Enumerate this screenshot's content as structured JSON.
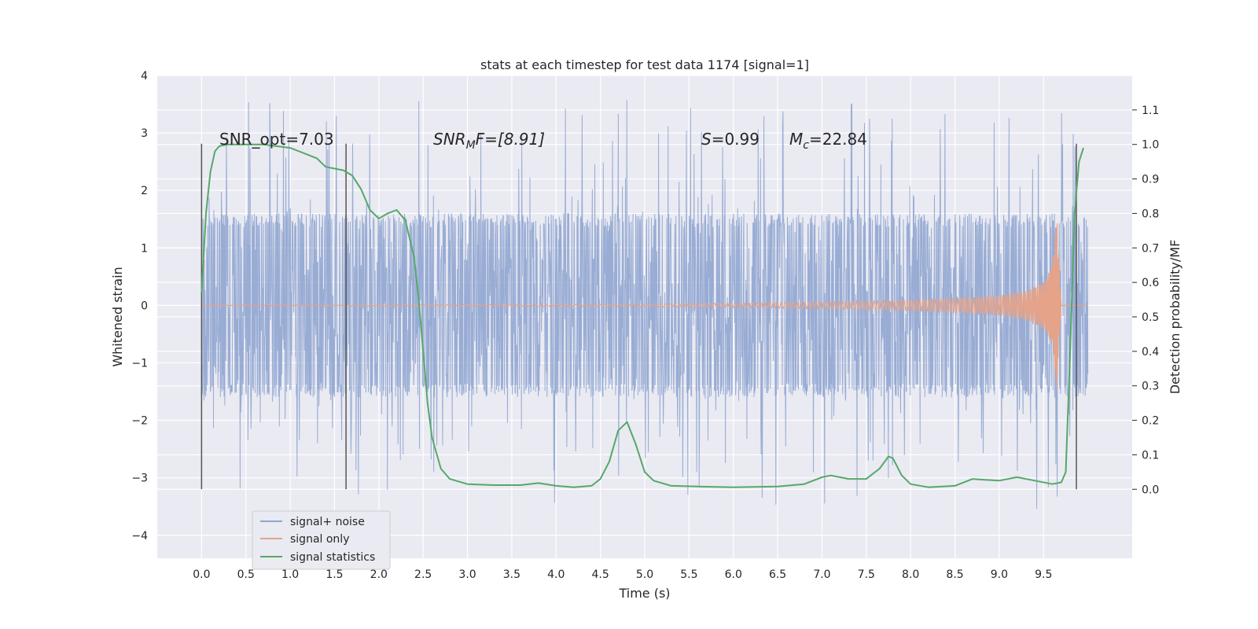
{
  "chart_data": {
    "type": "line",
    "title": "stats at each timestep for test data 1174 [signal=1]",
    "xlabel": "Time (s)",
    "ylabel": "Whitened strain",
    "y2label": "Detection probability/MF",
    "xlim": [
      -0.5,
      10.5
    ],
    "ylim": [
      -4.4,
      4.0
    ],
    "y2lim": [
      -0.2,
      1.2
    ],
    "x_ticks": [
      "0.0",
      "0.5",
      "1.0",
      "1.5",
      "2.0",
      "2.5",
      "3.0",
      "3.5",
      "4.0",
      "4.5",
      "5.0",
      "5.5",
      "6.0",
      "6.5",
      "7.0",
      "7.5",
      "8.0",
      "8.5",
      "9.0",
      "9.5"
    ],
    "y_ticks": [
      "4",
      "3",
      "2",
      "1",
      "0",
      "−1",
      "−2",
      "−3",
      "−4"
    ],
    "y2_ticks": [
      "1.1",
      "1.0",
      "0.9",
      "0.8",
      "0.7",
      "0.6",
      "0.5",
      "0.4",
      "0.3",
      "0.2",
      "0.1",
      "0.0"
    ],
    "grid": true,
    "legend_position": "lower-left",
    "annotations": {
      "snr_opt": "SNR_opt=7.03",
      "snr_mf_base": "SNR",
      "snr_mf_sub": "M",
      "snr_mf_rest": "F=[8.91]",
      "s_sym": "S",
      "s_rest": "=0.99",
      "mc_base": "M",
      "mc_sub": "c",
      "mc_rest": "=22.84"
    },
    "vertical_markers_x": [
      0.0,
      1.63,
      9.87
    ],
    "series": [
      {
        "name": "signal+ noise",
        "color": "#8fa5d0",
        "style": "dense noisy whitened strain, typical envelope about ±1.6 with spikes to ±3.5",
        "x_range": [
          0.0,
          10.0
        ],
        "envelope": 1.6,
        "max_spike": 3.6
      },
      {
        "name": "signal only",
        "color": "#e5a38a",
        "x": [
          0.0,
          5.0,
          6.0,
          7.0,
          8.0,
          8.5,
          9.0,
          9.3,
          9.5,
          9.6,
          9.65,
          9.7,
          10.0
        ],
        "amplitude": [
          0.0,
          0.02,
          0.04,
          0.06,
          0.09,
          0.12,
          0.17,
          0.25,
          0.4,
          0.7,
          1.5,
          0.0,
          0.0
        ]
      },
      {
        "name": "signal statistics",
        "color": "#55a868",
        "x": [
          0.0,
          0.05,
          0.1,
          0.15,
          0.2,
          0.3,
          0.5,
          0.7,
          1.0,
          1.1,
          1.3,
          1.4,
          1.6,
          1.7,
          1.8,
          1.9,
          2.0,
          2.1,
          2.2,
          2.3,
          2.4,
          2.45,
          2.5,
          2.55,
          2.6,
          2.7,
          2.8,
          3.0,
          3.3,
          3.6,
          3.8,
          4.0,
          4.2,
          4.4,
          4.5,
          4.6,
          4.7,
          4.8,
          4.9,
          5.0,
          5.1,
          5.3,
          5.6,
          6.0,
          6.5,
          6.8,
          7.0,
          7.1,
          7.3,
          7.5,
          7.65,
          7.75,
          7.8,
          7.9,
          8.0,
          8.2,
          8.5,
          8.7,
          8.8,
          9.0,
          9.2,
          9.4,
          9.6,
          9.7,
          9.75,
          9.8,
          9.85,
          9.9,
          9.95
        ],
        "values": [
          0.57,
          0.8,
          0.92,
          0.98,
          0.995,
          1.0,
          1.0,
          1.0,
          0.99,
          0.98,
          0.96,
          0.935,
          0.925,
          0.91,
          0.87,
          0.81,
          0.785,
          0.8,
          0.81,
          0.78,
          0.67,
          0.55,
          0.4,
          0.25,
          0.15,
          0.06,
          0.03,
          0.015,
          0.012,
          0.012,
          0.018,
          0.01,
          0.006,
          0.01,
          0.03,
          0.08,
          0.17,
          0.195,
          0.13,
          0.05,
          0.025,
          0.01,
          0.008,
          0.006,
          0.008,
          0.015,
          0.035,
          0.04,
          0.03,
          0.03,
          0.06,
          0.095,
          0.09,
          0.04,
          0.015,
          0.006,
          0.01,
          0.03,
          0.028,
          0.025,
          0.035,
          0.025,
          0.015,
          0.02,
          0.05,
          0.4,
          0.8,
          0.95,
          0.99
        ]
      }
    ]
  }
}
